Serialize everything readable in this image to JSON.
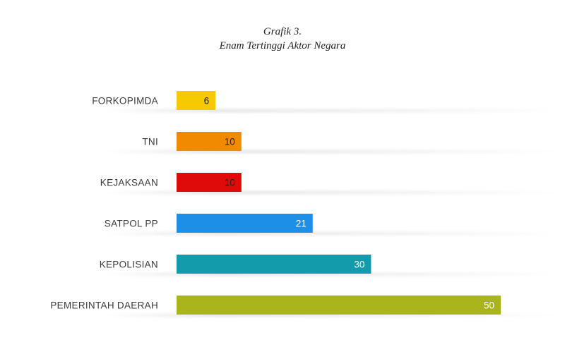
{
  "chart_data": {
    "type": "bar",
    "orientation": "horizontal",
    "title": "Grafik 3.",
    "subtitle": "Enam Tertinggi Aktor Negara",
    "categories": [
      "FORKOPIMDA",
      "TNI",
      "KEJAKSAAN",
      "SATPOL PP",
      "KEPOLISIAN",
      "PEMERINTAH DAERAH"
    ],
    "values": [
      6,
      10,
      10,
      21,
      30,
      50
    ],
    "colors": [
      "#f6c900",
      "#f28a00",
      "#df0a0a",
      "#1e8fe6",
      "#139aab",
      "#a8b51c"
    ],
    "label_colors": [
      "#222222",
      "#222222",
      "#222222",
      "#ffffff",
      "#ffffff",
      "#ffffff"
    ],
    "xlim": [
      0,
      50
    ],
    "grid": false,
    "legend": "none"
  }
}
